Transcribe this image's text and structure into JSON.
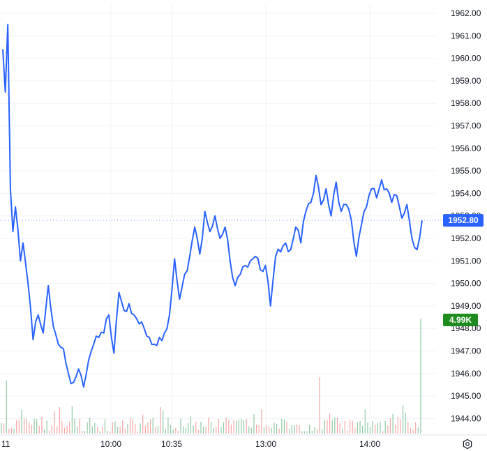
{
  "colors": {
    "line": "#2962ff",
    "grid": "#f0f3fa",
    "volume_up": "#8fc9a3",
    "volume_down": "#f5a6a6",
    "price_badge": "#2962ff",
    "volume_badge": "#1e8c1e",
    "axis_text": "#131722"
  },
  "chart_data": {
    "type": "line",
    "y_axis": {
      "ticks": [
        "1962.00",
        "1961.00",
        "1960.00",
        "1959.00",
        "1958.00",
        "1957.00",
        "1956.00",
        "1955.00",
        "1954.00",
        "1953.00",
        "1952.00",
        "1951.00",
        "1950.00",
        "1949.00",
        "1948.00",
        "1947.00",
        "1946.00",
        "1945.00",
        "1944.00"
      ],
      "ylim": [
        1943.5,
        1962.3
      ]
    },
    "x_axis": {
      "ticks": [
        {
          "label": "11",
          "index": 0
        },
        {
          "label": "10:00",
          "index": 44
        },
        {
          "label": "10:35",
          "index": 66
        },
        {
          "label": "13:00",
          "index": 106
        },
        {
          "label": "14:00",
          "index": 148
        }
      ],
      "n_bars": 170
    },
    "price_series": {
      "name": "Price",
      "anchors": [
        [
          0,
          1960.4
        ],
        [
          1,
          1958.5
        ],
        [
          2,
          1961.5
        ],
        [
          3,
          1954.2
        ],
        [
          4,
          1952.3
        ],
        [
          5,
          1953.4
        ],
        [
          6,
          1952.4
        ],
        [
          7,
          1951.0
        ],
        [
          8,
          1951.8
        ],
        [
          10,
          1950.0
        ],
        [
          12,
          1947.5
        ],
        [
          14,
          1948.6
        ],
        [
          16,
          1947.8
        ],
        [
          18,
          1949.9
        ],
        [
          20,
          1948.1
        ],
        [
          22,
          1947.3
        ],
        [
          24,
          1947.1
        ],
        [
          26,
          1946.0
        ],
        [
          28,
          1945.6
        ],
        [
          30,
          1946.2
        ],
        [
          32,
          1945.4
        ],
        [
          34,
          1946.6
        ],
        [
          36,
          1947.3
        ],
        [
          38,
          1947.6
        ],
        [
          40,
          1947.8
        ],
        [
          42,
          1948.6
        ],
        [
          44,
          1946.9
        ],
        [
          46,
          1949.6
        ],
        [
          48,
          1948.8
        ],
        [
          50,
          1949.1
        ],
        [
          52,
          1948.6
        ],
        [
          54,
          1948.2
        ],
        [
          56,
          1948.0
        ],
        [
          58,
          1947.6
        ],
        [
          60,
          1947.3
        ],
        [
          62,
          1947.6
        ],
        [
          64,
          1947.8
        ],
        [
          66,
          1948.6
        ],
        [
          68,
          1951.1
        ],
        [
          70,
          1949.3
        ],
        [
          72,
          1950.4
        ],
        [
          74,
          1951.2
        ],
        [
          76,
          1952.5
        ],
        [
          78,
          1951.3
        ],
        [
          80,
          1953.2
        ],
        [
          82,
          1952.3
        ],
        [
          84,
          1953.0
        ],
        [
          86,
          1952.0
        ],
        [
          88,
          1952.5
        ],
        [
          90,
          1951.0
        ],
        [
          92,
          1949.9
        ],
        [
          94,
          1950.4
        ],
        [
          96,
          1950.8
        ],
        [
          98,
          1951.0
        ],
        [
          100,
          1951.2
        ],
        [
          102,
          1950.6
        ],
        [
          104,
          1950.8
        ],
        [
          106,
          1949.0
        ],
        [
          108,
          1951.2
        ],
        [
          110,
          1951.4
        ],
        [
          112,
          1951.8
        ],
        [
          114,
          1951.5
        ],
        [
          116,
          1952.5
        ],
        [
          118,
          1951.8
        ],
        [
          120,
          1953.2
        ],
        [
          122,
          1953.6
        ],
        [
          124,
          1954.8
        ],
        [
          126,
          1953.5
        ],
        [
          128,
          1954.2
        ],
        [
          130,
          1953.0
        ],
        [
          132,
          1954.5
        ],
        [
          134,
          1953.2
        ],
        [
          136,
          1953.5
        ],
        [
          138,
          1952.8
        ],
        [
          140,
          1951.2
        ],
        [
          142,
          1952.6
        ],
        [
          144,
          1953.4
        ],
        [
          146,
          1954.2
        ],
        [
          148,
          1953.8
        ],
        [
          150,
          1954.6
        ],
        [
          152,
          1954.2
        ],
        [
          154,
          1953.6
        ],
        [
          156,
          1953.9
        ],
        [
          158,
          1952.9
        ],
        [
          160,
          1953.5
        ],
        [
          162,
          1952.0
        ],
        [
          163,
          1951.6
        ],
        [
          164,
          1951.5
        ],
        [
          165,
          1952.0
        ],
        [
          166,
          1952.8
        ]
      ],
      "last_value": "1952.80"
    },
    "volume": {
      "last_value": "4.99K",
      "max": 5000,
      "spikes": [
        {
          "index": 2,
          "value": 2300
        },
        {
          "index": 23,
          "value": 1150
        },
        {
          "index": 28,
          "value": 1200
        },
        {
          "index": 63,
          "value": 1150
        },
        {
          "index": 103,
          "value": 1050
        },
        {
          "index": 126,
          "value": 2450
        },
        {
          "index": 144,
          "value": 1050
        },
        {
          "index": 159,
          "value": 1250
        },
        {
          "index": 166,
          "value": 4990
        }
      ]
    }
  }
}
